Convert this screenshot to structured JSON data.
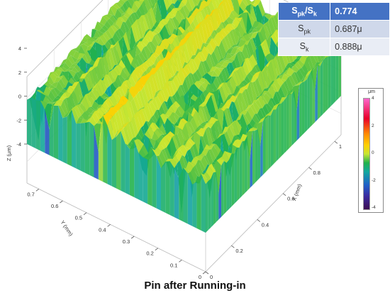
{
  "stats_table": {
    "header": {
      "label_main": "S",
      "label_sub1": "pk",
      "label_slash": "/S",
      "label_sub2": "k",
      "value": "0.774"
    },
    "rows": [
      {
        "label_main": "S",
        "label_sub": "pk",
        "value": "0.687μ"
      },
      {
        "label_main": "S",
        "label_sub": "k",
        "value": "0.888μ"
      }
    ]
  },
  "caption": "Pin after Running-in",
  "legend": {
    "unit": "μm",
    "ticks": [
      "4",
      "2",
      "0",
      "-2",
      "-4"
    ]
  },
  "chart_data": {
    "type": "surface3d",
    "zlabel": "Z (μm)",
    "ylabel": "Y (mm)",
    "xlabel": "X (mm)",
    "z_ticks": [
      "4",
      "2",
      "0",
      "-2",
      "-4"
    ],
    "y_ticks": [
      "0.7",
      "0.6",
      "0.5",
      "0.4",
      "0.3",
      "0.2",
      "0.1",
      "0"
    ],
    "x_ticks": [
      "0",
      "0.2",
      "0.4",
      "0.6",
      "0.8",
      "1"
    ],
    "zlim": [
      -4,
      4
    ],
    "ylim": [
      0,
      0.75
    ],
    "xlim": [
      0,
      1.05
    ],
    "colorscale": [
      "#3d0e52",
      "#3a2aa0",
      "#1f60c8",
      "#13a89e",
      "#22b24c",
      "#c8e632",
      "#ffd000",
      "#ff8c00",
      "#e8002a",
      "#ff66cc"
    ]
  }
}
